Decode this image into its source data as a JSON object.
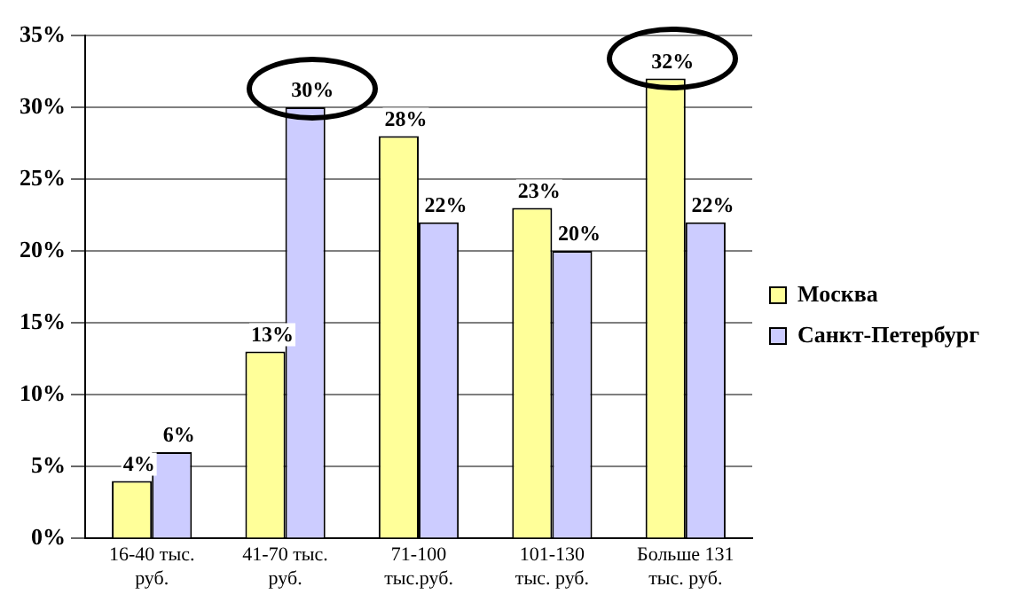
{
  "chart_data": {
    "type": "bar",
    "categories": [
      "16-40 тыс. руб.",
      "41-70 тыс. руб.",
      "71-100 тыс.руб.",
      "101-130 тыс. руб.",
      "Больше 131 тыс. руб."
    ],
    "series": [
      {
        "name": "Москва",
        "color": "#ffff99",
        "values": [
          4,
          13,
          28,
          23,
          32
        ],
        "value_labels": [
          "4%",
          "13%",
          "28%",
          "23%",
          "32%"
        ]
      },
      {
        "name": "Санкт-Петербург",
        "color": "#ccccff",
        "values": [
          6,
          30,
          22,
          20,
          22
        ],
        "value_labels": [
          "6%",
          "30%",
          "22%",
          "20%",
          "22%"
        ]
      }
    ],
    "ylim": [
      0,
      35
    ],
    "yticks": [
      {
        "value": 0,
        "label": "0%"
      },
      {
        "value": 5,
        "label": "5%"
      },
      {
        "value": 10,
        "label": "10%"
      },
      {
        "value": 15,
        "label": "15%"
      },
      {
        "value": 20,
        "label": "20%"
      },
      {
        "value": 25,
        "label": "25%"
      },
      {
        "value": 30,
        "label": "30%"
      },
      {
        "value": 35,
        "label": "35%"
      }
    ],
    "grid": "y",
    "legend": "right"
  }
}
